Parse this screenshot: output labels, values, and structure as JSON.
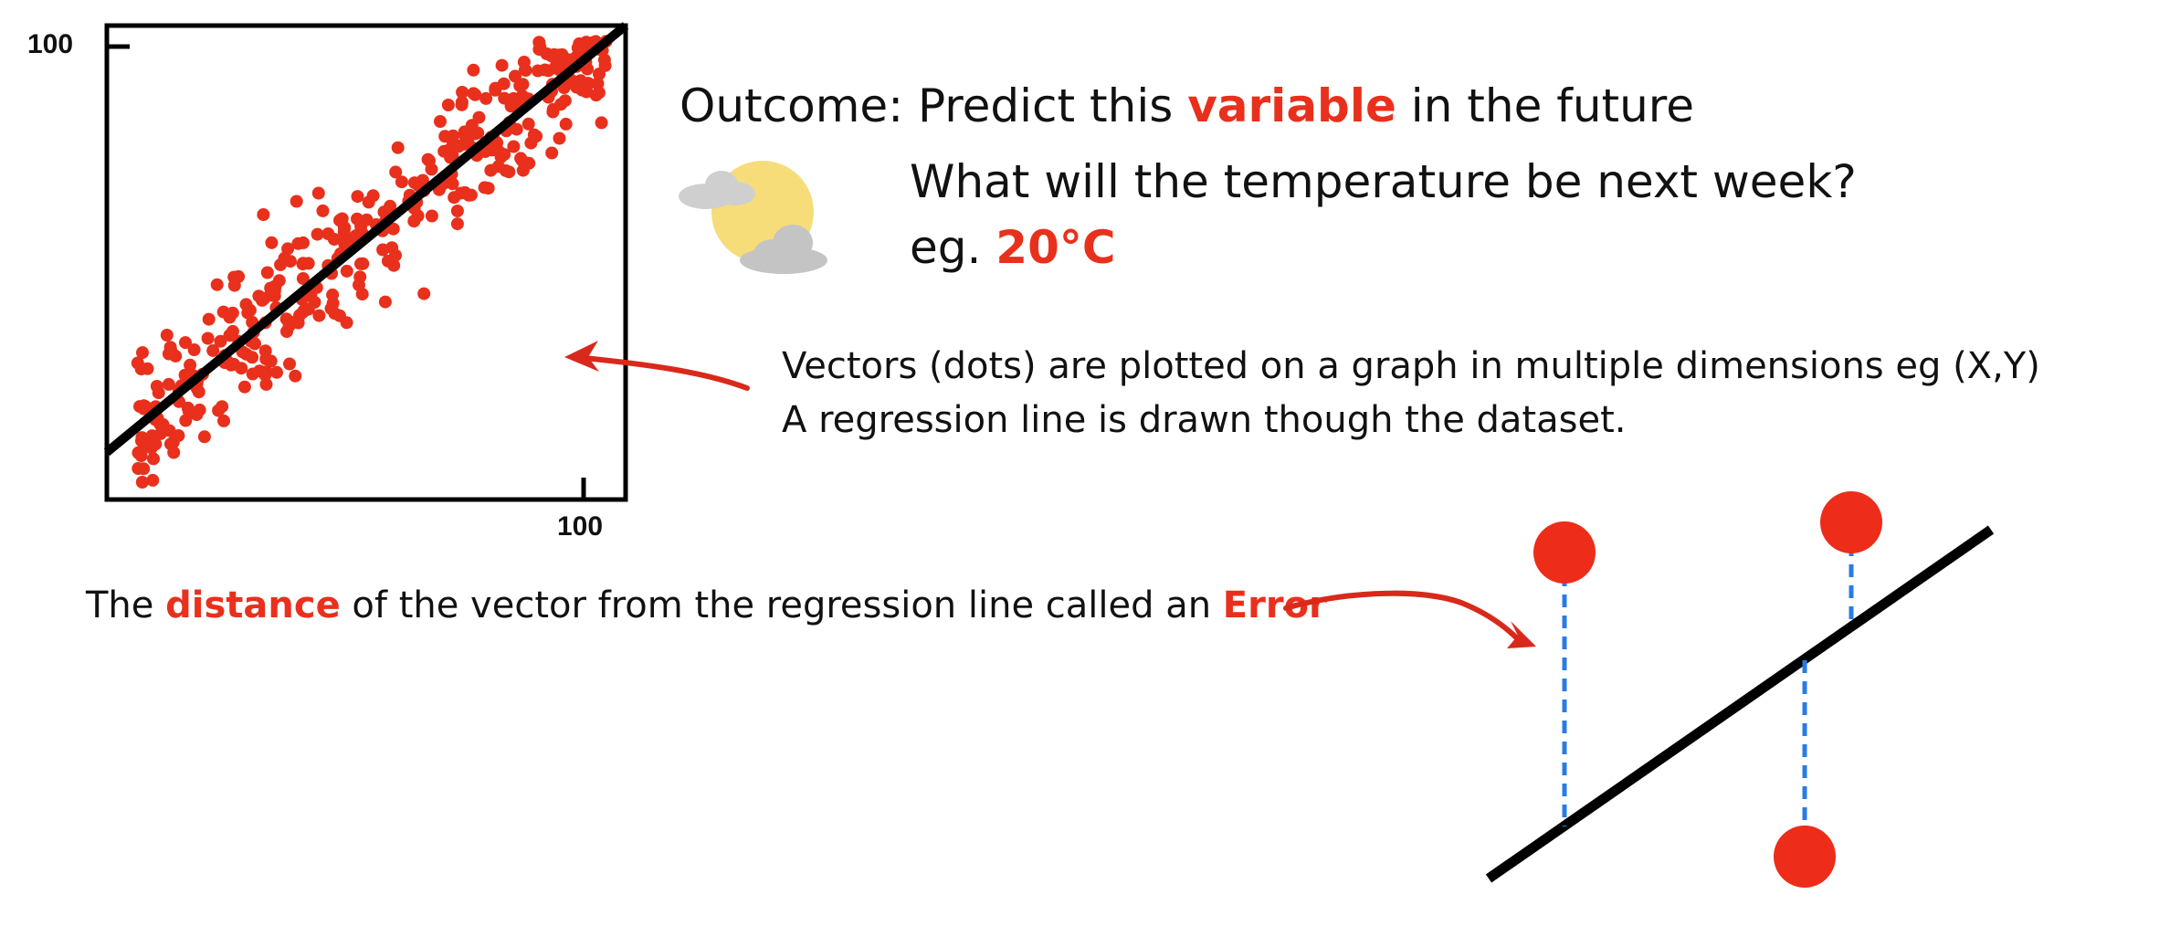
{
  "colors": {
    "accent_red": "#e8301c",
    "text": "#111111",
    "error_dash": "#2a7be4",
    "line": "#000000",
    "cloud": "#c9c9c9",
    "sun": "#f7dc7a"
  },
  "chart_data": {
    "type": "scatter",
    "title": "",
    "xlabel": "",
    "ylabel": "",
    "x_tick_label": "100",
    "y_tick_label": "100",
    "xlim": [
      0,
      108
    ],
    "ylim": [
      -12,
      108
    ],
    "grid": false,
    "legend": "none",
    "regression_line": {
      "x": [
        0,
        108
      ],
      "y": [
        0,
        108
      ]
    },
    "point_count": 380
  },
  "outcome": {
    "prefix": "Outcome: Predict this ",
    "highlight": "variable",
    "suffix": " in the future"
  },
  "weather_icon": "sun-behind-clouds-icon",
  "question": "What will the temperature be next week?",
  "example": {
    "prefix": "eg. ",
    "value": "20°C"
  },
  "explanation": {
    "line1": "Vectors (dots) are plotted on a graph in multiple dimensions eg (X,Y)",
    "line2": "A regression line is drawn though the dataset."
  },
  "error_note": {
    "p1": "The ",
    "h1": "distance",
    "p2": " of the vector from the regression line called an ",
    "h2": "Error"
  }
}
